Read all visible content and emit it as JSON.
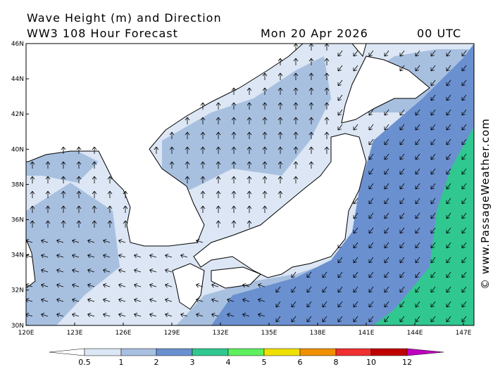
{
  "header": {
    "title": "Wave Height (m) and Direction",
    "model": "WW3 108 Hour Forecast",
    "date": "Mon 20 Apr 2026",
    "time": "00 UTC"
  },
  "map": {
    "lat_labels": [
      "46N",
      "44N",
      "42N",
      "40N",
      "38N",
      "36N",
      "34N",
      "32N",
      "30N"
    ],
    "lon_labels": [
      "120E",
      "123E",
      "126E",
      "129E",
      "132E",
      "135E",
      "138E",
      "141E",
      "144E",
      "147E"
    ]
  },
  "colorbar": {
    "labels": [
      0.5,
      1,
      2,
      3,
      4,
      5,
      6,
      8,
      10,
      12
    ],
    "colors": [
      "#ffffff",
      "#dce6f4",
      "#a8c0e0",
      "#6a90d0",
      "#30c890",
      "#5ef05e",
      "#f0e000",
      "#f09000",
      "#f03030",
      "#c00000",
      "#c000c0"
    ]
  },
  "credit": "© www.PassageWeather.com"
}
